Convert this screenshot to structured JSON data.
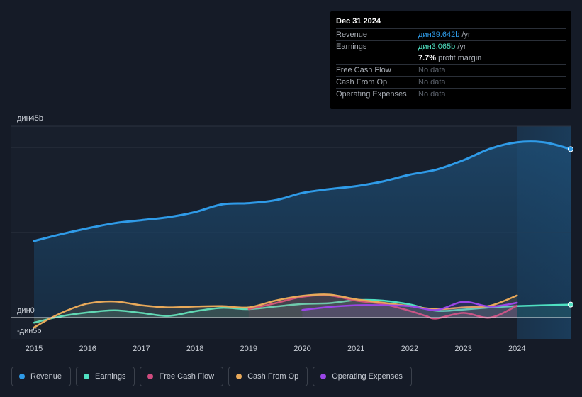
{
  "tooltip": {
    "date": "Dec 31 2024",
    "rows": [
      {
        "label": "Revenue",
        "value": "дин39.642b",
        "unit": " /yr"
      },
      {
        "label": "Earnings",
        "value": "дин3.065b",
        "unit": " /yr"
      },
      {
        "label": "",
        "value": "7.7%",
        "unit": " profit margin"
      },
      {
        "label": "Free Cash Flow",
        "value": "No data",
        "unit": ""
      },
      {
        "label": "Cash From Op",
        "value": "No data",
        "unit": ""
      },
      {
        "label": "Operating Expenses",
        "value": "No data",
        "unit": ""
      }
    ]
  },
  "legend": [
    {
      "label": "Revenue",
      "color": "#2f9be8"
    },
    {
      "label": "Earnings",
      "color": "#4fe0c1"
    },
    {
      "label": "Free Cash Flow",
      "color": "#cf4b7e"
    },
    {
      "label": "Cash From Op",
      "color": "#e8a95a"
    },
    {
      "label": "Operating Expenses",
      "color": "#9b46e8"
    }
  ],
  "chart_data": {
    "type": "line",
    "title": "",
    "y_tick_labels": {
      "top": "дин45b",
      "zero": "дин0",
      "bottom": "-дин5b"
    },
    "ylim": [
      -5,
      45
    ],
    "xlim": [
      2015,
      2025
    ],
    "x_ticks": [
      "2015",
      "2016",
      "2017",
      "2018",
      "2019",
      "2020",
      "2021",
      "2022",
      "2023",
      "2024"
    ],
    "series": [
      {
        "name": "Revenue",
        "color": "#2f9be8",
        "area": true,
        "x": [
          2015,
          2015.5,
          2016,
          2016.5,
          2017,
          2017.5,
          2018,
          2018.5,
          2019,
          2019.5,
          2020,
          2020.5,
          2021,
          2021.5,
          2022,
          2022.5,
          2023,
          2023.5,
          2024,
          2024.5,
          2025
        ],
        "y": [
          18.0,
          19.6,
          21.0,
          22.2,
          22.9,
          23.6,
          24.8,
          26.6,
          26.9,
          27.6,
          29.3,
          30.2,
          30.9,
          32.0,
          33.6,
          34.8,
          37.0,
          39.7,
          41.2,
          41.2,
          39.6
        ]
      },
      {
        "name": "Earnings",
        "color": "#4fe0c1",
        "area": false,
        "x": [
          2015,
          2015.5,
          2016,
          2016.5,
          2017,
          2017.5,
          2018,
          2018.5,
          2019,
          2019.5,
          2020,
          2020.5,
          2021,
          2021.5,
          2022,
          2022.5,
          2023,
          2023.5,
          2024,
          2024.5,
          2025
        ],
        "y": [
          -1.2,
          0.3,
          1.2,
          1.7,
          1.1,
          0.4,
          1.5,
          2.3,
          2.0,
          2.6,
          3.2,
          3.4,
          4.1,
          4.0,
          3.1,
          1.6,
          1.9,
          2.4,
          2.7,
          2.9,
          3.065
        ]
      },
      {
        "name": "Free Cash Flow",
        "color": "#cf4b7e",
        "area": false,
        "x": [
          2019,
          2019.5,
          2020,
          2020.5,
          2021,
          2021.5,
          2022,
          2022.3,
          2022.5,
          2023,
          2023.5,
          2024
        ],
        "y": [
          2.0,
          3.4,
          4.9,
          5.2,
          4.0,
          3.2,
          1.6,
          0.4,
          -0.2,
          1.1,
          0.0,
          2.8
        ]
      },
      {
        "name": "Cash From Op",
        "color": "#e8a95a",
        "area": false,
        "x": [
          2015,
          2015.3,
          2015.6,
          2016,
          2016.5,
          2017,
          2017.5,
          2018,
          2018.5,
          2019,
          2019.5,
          2020,
          2020.5,
          2021,
          2021.5,
          2022,
          2022.5,
          2023,
          2023.5,
          2024
        ],
        "y": [
          -2.3,
          -0.2,
          1.6,
          3.3,
          3.8,
          2.9,
          2.4,
          2.6,
          2.7,
          2.4,
          4.0,
          5.1,
          5.4,
          4.3,
          3.5,
          2.7,
          2.0,
          2.4,
          2.8,
          5.2
        ]
      },
      {
        "name": "Operating Expenses",
        "color": "#9b46e8",
        "area": false,
        "x": [
          2020,
          2020.5,
          2021,
          2021.5,
          2022,
          2022.5,
          2023,
          2023.5,
          2024
        ],
        "y": [
          1.8,
          2.5,
          2.9,
          2.9,
          2.7,
          1.8,
          3.7,
          2.6,
          3.5
        ]
      }
    ]
  }
}
